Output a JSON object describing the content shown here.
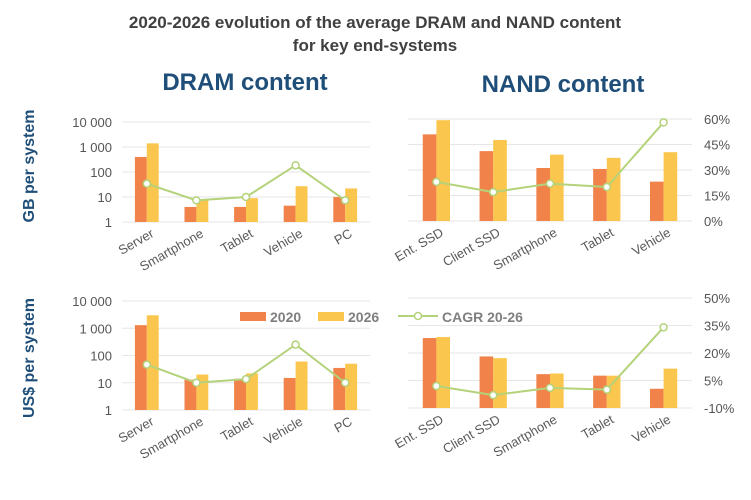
{
  "title_line1": "2020-2026 evolution of the average DRAM and NAND content",
  "title_line2": "for key end-systems",
  "dram_heading": "DRAM content",
  "nand_heading": "NAND content",
  "ylabel_top": "GB per system",
  "ylabel_bottom": "US$ per system",
  "legend": {
    "s2020": "2020",
    "s2026": "2026",
    "cagr": "CAGR 20-26"
  },
  "colors": {
    "s2020": "#f0824a",
    "s2026": "#fbc64d",
    "cagr": "#b4d27a",
    "grid": "#e6e6e6"
  },
  "log_ticks": [
    "1",
    "10",
    "100",
    "1 000",
    "10 000"
  ],
  "top_pct_ticks": [
    "0%",
    "15%",
    "30%",
    "45%",
    "60%"
  ],
  "bottom_pct_ticks": [
    "-10%",
    "5%",
    "20%",
    "35%",
    "50%"
  ],
  "chart_data": [
    {
      "type": "bar",
      "panel": "dram-gb",
      "scale": "log",
      "categories": [
        "Server",
        "Smartphone",
        "Tablet",
        "Vehicle",
        "PC"
      ],
      "series": [
        {
          "name": "2020",
          "values": [
            400,
            4,
            4,
            4.5,
            10
          ]
        },
        {
          "name": "2026",
          "values": [
            1400,
            8,
            9,
            27,
            22
          ]
        },
        {
          "name": "CAGR 20-26",
          "values": [
            23,
            13,
            15,
            34,
            13
          ]
        }
      ],
      "ylim": [
        1,
        10000
      ],
      "y2lim": [
        0,
        60
      ]
    },
    {
      "type": "bar",
      "panel": "nand-gb",
      "scale": "log",
      "categories": [
        "Ent. SSD",
        "Client SSD",
        "Smartphone",
        "Tablet",
        "Vehicle"
      ],
      "series": [
        {
          "name": "2020",
          "values": [
            2500,
            550,
            120,
            110,
            35
          ]
        },
        {
          "name": "2026",
          "values": [
            9000,
            1500,
            400,
            300,
            500
          ]
        },
        {
          "name": "CAGR 20-26",
          "values": [
            23,
            17,
            22,
            20,
            58
          ]
        }
      ],
      "ylim": [
        1,
        10000
      ],
      "y2lim": [
        0,
        60
      ]
    },
    {
      "type": "bar",
      "panel": "dram-usd",
      "scale": "log",
      "categories": [
        "Server",
        "Smartphone",
        "Tablet",
        "Vehicle",
        "PC"
      ],
      "series": [
        {
          "name": "2020",
          "values": [
            1300,
            13,
            14,
            15,
            35
          ]
        },
        {
          "name": "2026",
          "values": [
            3000,
            20,
            22,
            60,
            50
          ]
        },
        {
          "name": "CAGR 20-26",
          "values": [
            15,
            5,
            7,
            26,
            5
          ]
        }
      ],
      "ylim": [
        1,
        10000
      ],
      "y2lim": [
        -10,
        50
      ]
    },
    {
      "type": "bar",
      "panel": "nand-usd",
      "scale": "log",
      "categories": [
        "Ent. SSD",
        "Client SSD",
        "Smartphone",
        "Tablet",
        "Vehicle"
      ],
      "series": [
        {
          "name": "2020",
          "values": [
            350,
            75,
            17,
            15,
            5
          ]
        },
        {
          "name": "2026",
          "values": [
            380,
            65,
            18,
            15,
            27
          ]
        },
        {
          "name": "CAGR 20-26",
          "values": [
            2,
            -3,
            1,
            0,
            34
          ]
        }
      ],
      "ylim": [
        1,
        10000
      ],
      "y2lim": [
        -10,
        50
      ]
    }
  ]
}
